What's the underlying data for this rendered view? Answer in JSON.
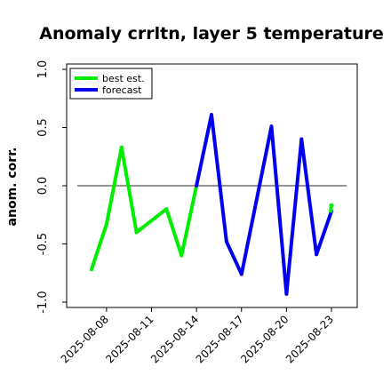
{
  "chart_data": {
    "type": "line",
    "title": "Anomaly crrltn, layer 5 temperature",
    "xlabel": "",
    "ylabel": "anom. corr.",
    "ylim": [
      -1.0,
      1.0
    ],
    "yticks": [
      "-1.0",
      "-0.5",
      "0.0",
      "0.5",
      "1.0"
    ],
    "ytick_values": [
      -1.0,
      -0.5,
      0.0,
      0.5,
      1.0
    ],
    "reference_line": 0.0,
    "x_tick_labels": [
      "2025-08-08",
      "2025-08-11",
      "2025-08-14",
      "2025-08-17",
      "2025-08-20",
      "2025-08-23"
    ],
    "x_tick_values": [
      8,
      11,
      14,
      17,
      20,
      23
    ],
    "highlighted_tick": "2025-08-14",
    "highlight_color": "#2ca02c",
    "legend_position": "upper-left",
    "series": [
      {
        "name": "best est.",
        "color": "#00ee00",
        "x": [
          7,
          8,
          9,
          10,
          12,
          13,
          14
        ],
        "values": [
          -0.72,
          -0.33,
          0.33,
          -0.4,
          -0.2,
          -0.6,
          0.0
        ]
      },
      {
        "name": "forecast",
        "color": "#0000ee",
        "x": [
          14,
          15,
          16,
          17,
          19,
          20,
          21,
          22,
          23
        ],
        "values": [
          0.0,
          0.61,
          -0.48,
          -0.76,
          0.51,
          -0.93,
          0.4,
          -0.59,
          -0.22
        ]
      },
      {
        "name": "",
        "color": "#00ee00",
        "x": [
          23
        ],
        "values": [
          -0.17
        ]
      }
    ]
  }
}
